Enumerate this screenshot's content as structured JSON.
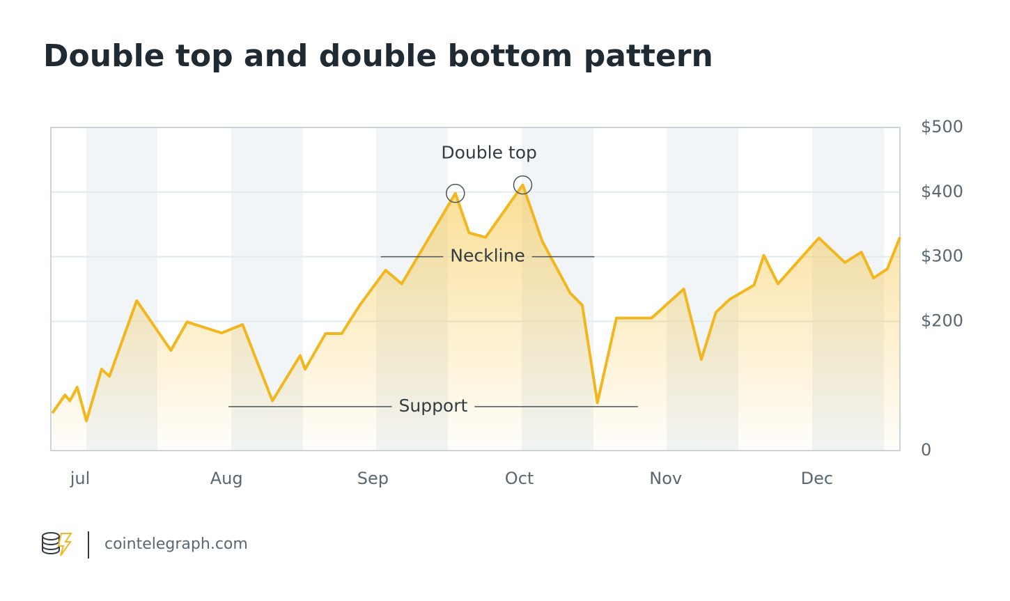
{
  "chart_data": {
    "type": "area",
    "title": "Double top and double bottom pattern",
    "x": [
      0.3,
      2.9,
      3.9,
      5.4,
      7.3,
      10.4,
      12,
      17.6,
      24.6,
      27.9,
      35,
      39.3,
      45.4,
      51.1,
      52.1,
      56.3,
      59.6,
      63.4,
      68.6,
      71.9,
      82.9,
      85.7,
      89.1,
      96.7,
      100.7,
      106.4,
      108.9,
      112,
      115.9,
      123.1,
      129.7,
      133.3,
      136.3,
      139.1,
      144.1,
      146.1,
      149,
      157.4,
      162.7,
      166.1,
      168.6,
      171.4,
      174
    ],
    "series": [
      {
        "color": "#f2b71f",
        "values": [
          58,
          86,
          77,
          98,
          46,
          126,
          115,
          232,
          155,
          199,
          182,
          195,
          77,
          147,
          126,
          181,
          181,
          226,
          279,
          258,
          398,
          337,
          330,
          411,
          324,
          244,
          225,
          74,
          205,
          205,
          250,
          141,
          214,
          234,
          256,
          302,
          258,
          329,
          291,
          307,
          267,
          281,
          330
        ]
      }
    ],
    "xlim": [
      0,
      174
    ],
    "xticks": [
      {
        "value": 6,
        "label": "jul"
      },
      {
        "value": 36,
        "label": "Aug"
      },
      {
        "value": 66,
        "label": "Sep"
      },
      {
        "value": 96,
        "label": "Oct"
      },
      {
        "value": 126,
        "label": "Nov"
      },
      {
        "value": 157,
        "label": "Dec"
      }
    ],
    "ylim": [
      0,
      500
    ],
    "yticks": [
      {
        "value": 500,
        "label": "$500"
      },
      {
        "value": 400,
        "label": "$400"
      },
      {
        "value": 300,
        "label": "$300"
      },
      {
        "value": 200,
        "label": "$200"
      },
      0
    ],
    "grid": true,
    "annotations": {
      "double_top": {
        "label": "Double top",
        "points": [
          20,
          23
        ]
      },
      "neckline": {
        "label": "Neckline",
        "value": 300,
        "x": [
          67.6,
          111.4
        ]
      },
      "support": {
        "label": "Support",
        "value": 68,
        "x": [
          36.4,
          120.3
        ]
      }
    }
  },
  "footer": {
    "site": "cointelegraph.com"
  }
}
